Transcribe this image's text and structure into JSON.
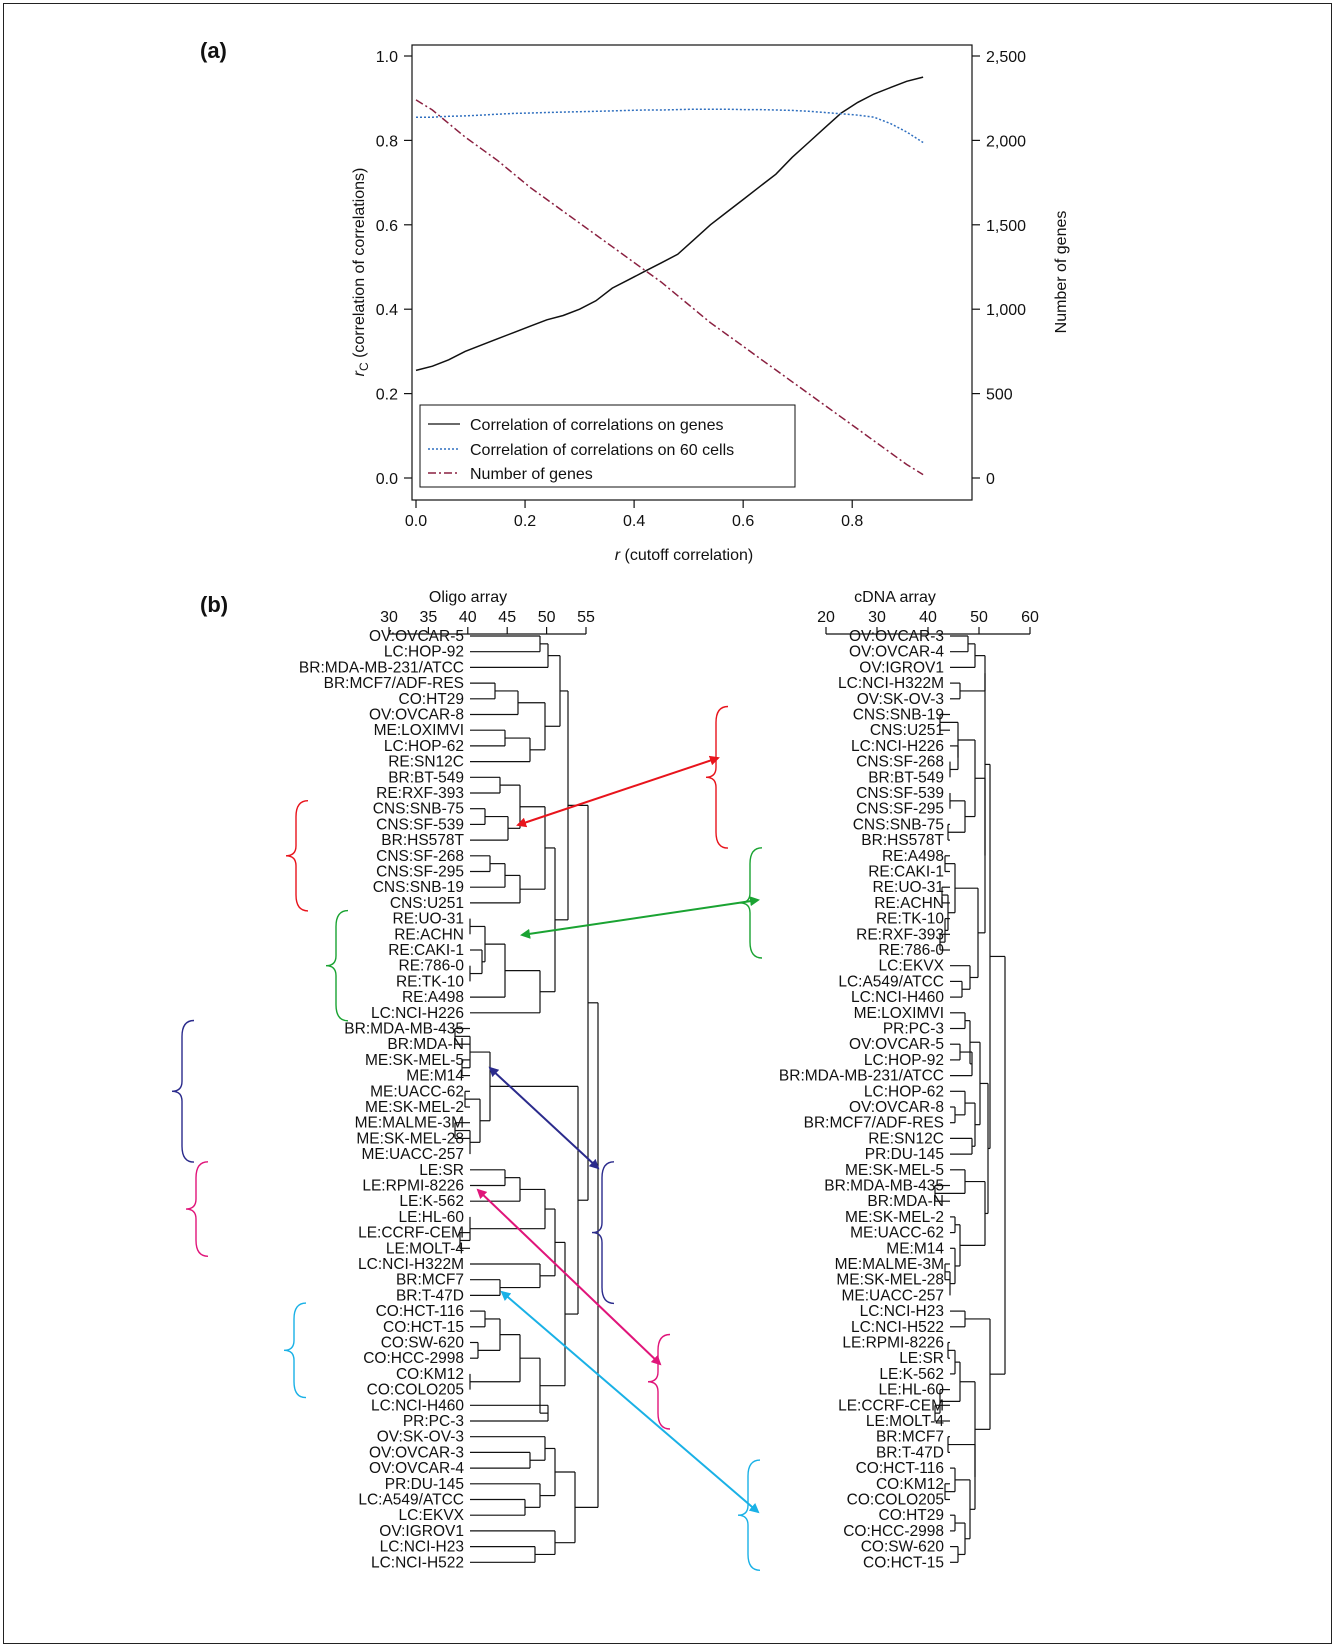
{
  "panels": {
    "a": "(a)",
    "b": "(b)"
  },
  "chart_data": [
    {
      "type": "line",
      "panel": "(a)",
      "xlabel_var": "r",
      "xlabel_rest": " (cutoff correlation)",
      "ylabel_var": "r",
      "ylabel_sub": "C",
      "ylabel_rest": " (correlation of correlations)",
      "y2label": "Number of genes",
      "xlim": [
        0.0,
        0.95
      ],
      "ylim": [
        0.0,
        1.0
      ],
      "y2lim": [
        0,
        2500
      ],
      "xticks": [
        "0.0",
        "0.2",
        "0.4",
        "0.6",
        "0.8"
      ],
      "xtick_values": [
        0.0,
        0.2,
        0.4,
        0.6,
        0.8
      ],
      "yticks": [
        "0.0",
        "0.2",
        "0.4",
        "0.6",
        "0.8",
        "1.0"
      ],
      "ytick_values": [
        0.0,
        0.2,
        0.4,
        0.6,
        0.8,
        1.0
      ],
      "y2ticks": [
        "0",
        "500",
        "1,000",
        "1,500",
        "2,000",
        "2,500"
      ],
      "y2tick_values": [
        0,
        500,
        1000,
        1500,
        2000,
        2500
      ],
      "legend_position": "bottom-left",
      "x": [
        0.0,
        0.03,
        0.06,
        0.09,
        0.12,
        0.15,
        0.18,
        0.21,
        0.24,
        0.27,
        0.3,
        0.33,
        0.36,
        0.39,
        0.42,
        0.45,
        0.48,
        0.51,
        0.54,
        0.57,
        0.6,
        0.63,
        0.66,
        0.69,
        0.72,
        0.75,
        0.78,
        0.81,
        0.84,
        0.87,
        0.9,
        0.93
      ],
      "series": [
        {
          "name": "Correlation of correlations on genes",
          "axis": "left",
          "color": "#111111",
          "dash": "",
          "values": [
            0.255,
            0.265,
            0.28,
            0.3,
            0.315,
            0.33,
            0.345,
            0.36,
            0.375,
            0.385,
            0.4,
            0.42,
            0.45,
            0.47,
            0.49,
            0.51,
            0.53,
            0.565,
            0.6,
            0.63,
            0.66,
            0.69,
            0.72,
            0.76,
            0.795,
            0.83,
            0.865,
            0.89,
            0.91,
            0.925,
            0.94,
            0.95
          ]
        },
        {
          "name": "Correlation of correlations on 60 cells",
          "axis": "left",
          "color": "#2f6fbf",
          "dash": "2,2",
          "values": [
            0.855,
            0.855,
            0.857,
            0.858,
            0.86,
            0.862,
            0.864,
            0.865,
            0.866,
            0.867,
            0.868,
            0.869,
            0.87,
            0.871,
            0.872,
            0.872,
            0.873,
            0.874,
            0.874,
            0.874,
            0.873,
            0.873,
            0.872,
            0.871,
            0.869,
            0.866,
            0.863,
            0.86,
            0.855,
            0.84,
            0.82,
            0.795
          ]
        },
        {
          "name": "Number of genes",
          "axis": "right",
          "color": "#8a2040",
          "dash": "8,3,2,3",
          "values": [
            2240,
            2180,
            2100,
            2020,
            1950,
            1880,
            1800,
            1720,
            1650,
            1580,
            1510,
            1440,
            1370,
            1300,
            1230,
            1160,
            1080,
            1000,
            920,
            850,
            780,
            710,
            640,
            570,
            500,
            430,
            360,
            290,
            220,
            150,
            80,
            20
          ]
        }
      ]
    },
    {
      "type": "dendrogram",
      "panel": "(b)",
      "left_title": "Oligo array",
      "right_title": "cDNA array",
      "left_axis": {
        "ticks": [
          "30",
          "35",
          "40",
          "45",
          "50",
          "55"
        ],
        "values": [
          30,
          35,
          40,
          45,
          50,
          55
        ]
      },
      "right_axis": {
        "ticks": [
          "20",
          "30",
          "40",
          "50",
          "60"
        ],
        "values": [
          20,
          30,
          40,
          50,
          60
        ]
      },
      "left_leaves": [
        "OV:OVCAR-5",
        "LC:HOP-92",
        "BR:MDA-MB-231/ATCC",
        "BR:MCF7/ADF-RES",
        "CO:HT29",
        "OV:OVCAR-8",
        "ME:LOXIMVI",
        "LC:HOP-62",
        "RE:SN12C",
        "BR:BT-549",
        "RE:RXF-393",
        "CNS:SNB-75",
        "CNS:SF-539",
        "BR:HS578T",
        "CNS:SF-268",
        "CNS:SF-295",
        "CNS:SNB-19",
        "CNS:U251",
        "RE:UO-31",
        "RE:ACHN",
        "RE:CAKI-1",
        "RE:786-0",
        "RE:TK-10",
        "RE:A498",
        "LC:NCI-H226",
        "BR:MDA-MB-435",
        "BR:MDA-N",
        "ME:SK-MEL-5",
        "ME:M14",
        "ME:UACC-62",
        "ME:SK-MEL-2",
        "ME:MALME-3M",
        "ME:SK-MEL-28",
        "ME:UACC-257",
        "LE:SR",
        "LE:RPMI-8226",
        "LE:K-562",
        "LE:HL-60",
        "LE:CCRF-CEM",
        "LE:MOLT-4",
        "LC:NCI-H322M",
        "BR:MCF7",
        "BR:T-47D",
        "CO:HCT-116",
        "CO:HCT-15",
        "CO:SW-620",
        "CO:HCC-2998",
        "CO:KM12",
        "CO:COLO205",
        "LC:NCI-H460",
        "PR:PC-3",
        "OV:SK-OV-3",
        "OV:OVCAR-3",
        "OV:OVCAR-4",
        "PR:DU-145",
        "LC:A549/ATCC",
        "LC:EKVX",
        "OV:IGROV1",
        "LC:NCI-H23",
        "LC:NCI-H522"
      ],
      "right_leaves": [
        "OV:OVCAR-3",
        "OV:OVCAR-4",
        "OV:IGROV1",
        "LC:NCI-H322M",
        "OV:SK-OV-3",
        "CNS:SNB-19",
        "CNS:U251",
        "LC:NCI-H226",
        "CNS:SF-268",
        "BR:BT-549",
        "CNS:SF-539",
        "CNS:SF-295",
        "CNS:SNB-75",
        "BR:HS578T",
        "RE:A498",
        "RE:CAKI-1",
        "RE:UO-31",
        "RE:ACHN",
        "RE:TK-10",
        "RE:RXF-393",
        "RE:786-0",
        "LC:EKVX",
        "LC:A549/ATCC",
        "LC:NCI-H460",
        "ME:LOXIMVI",
        "PR:PC-3",
        "OV:OVCAR-5",
        "LC:HOP-92",
        "BR:MDA-MB-231/ATCC",
        "LC:HOP-62",
        "OV:OVCAR-8",
        "BR:MCF7/ADF-RES",
        "RE:SN12C",
        "PR:DU-145",
        "ME:SK-MEL-5",
        "BR:MDA-MB-435",
        "BR:MDA-N",
        "ME:SK-MEL-2",
        "ME:UACC-62",
        "ME:M14",
        "ME:MALME-3M",
        "ME:SK-MEL-28",
        "ME:UACC-257",
        "LC:NCI-H23",
        "LC:NCI-H522",
        "LE:RPMI-8226",
        "LE:SR",
        "LE:K-562",
        "LE:HL-60",
        "LE:CCRF-CEM",
        "LE:MOLT-4",
        "BR:MCF7",
        "BR:T-47D",
        "CO:HCT-116",
        "CO:KM12",
        "CO:COLO205",
        "CO:HT29",
        "CO:HCC-2998",
        "CO:SW-620",
        "CO:HCT-15"
      ],
      "highlight_colors": [
        "#e8141c",
        "#1aa332",
        "#2b2b8c",
        "#e0157a",
        "#1ab1e6"
      ]
    }
  ]
}
